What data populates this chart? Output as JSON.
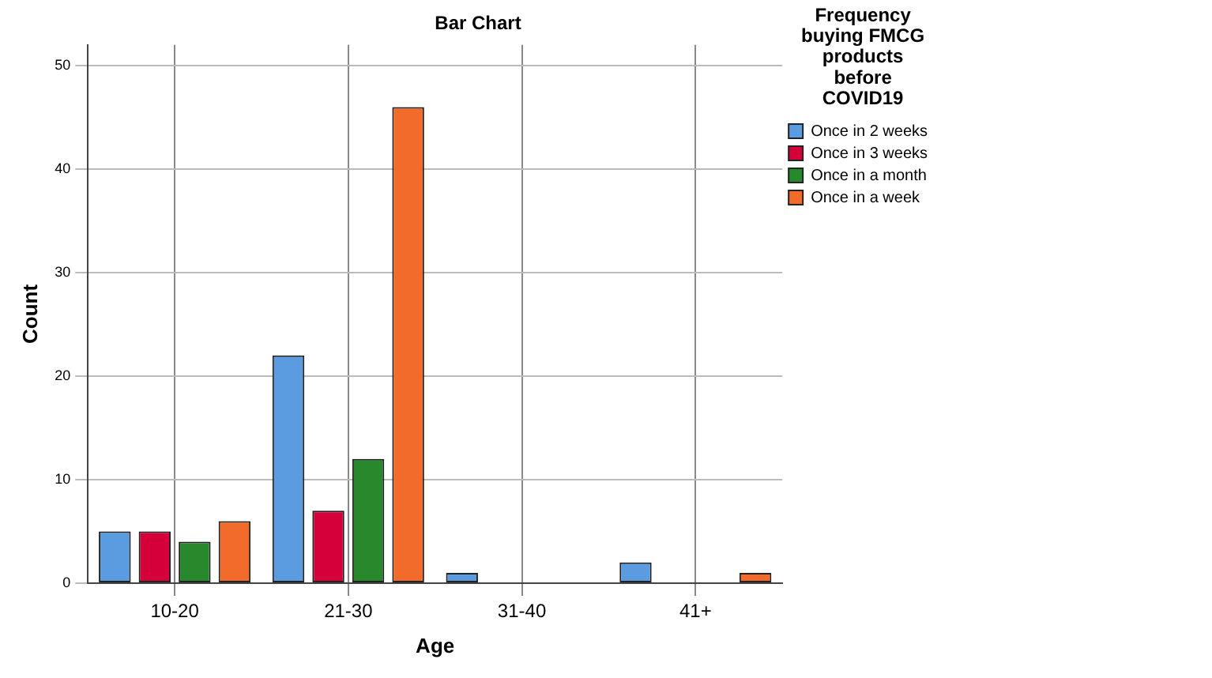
{
  "chart_data": {
    "type": "bar",
    "title": "Bar Chart",
    "xlabel": "Age",
    "ylabel": "Count",
    "legend_title": "Frequency buying FMCG products before COVID19",
    "categories": [
      "10-20",
      "21-30",
      "31-40",
      "41+"
    ],
    "series": [
      {
        "name": "Once in 2 weeks",
        "color": "#5b9be0",
        "values": [
          5,
          22,
          1,
          2
        ]
      },
      {
        "name": "Once in 3 weeks",
        "color": "#d5003a",
        "values": [
          5,
          7,
          0,
          0
        ]
      },
      {
        "name": "Once in a month",
        "color": "#27882c",
        "values": [
          4,
          12,
          0,
          0
        ]
      },
      {
        "name": "Once in a week",
        "color": "#f26b2b",
        "values": [
          6,
          46,
          0,
          1
        ]
      }
    ],
    "ylim": [
      0,
      52
    ],
    "yticks": [
      0,
      10,
      20,
      30,
      40,
      50
    ],
    "grid": true,
    "legend": "top right"
  }
}
